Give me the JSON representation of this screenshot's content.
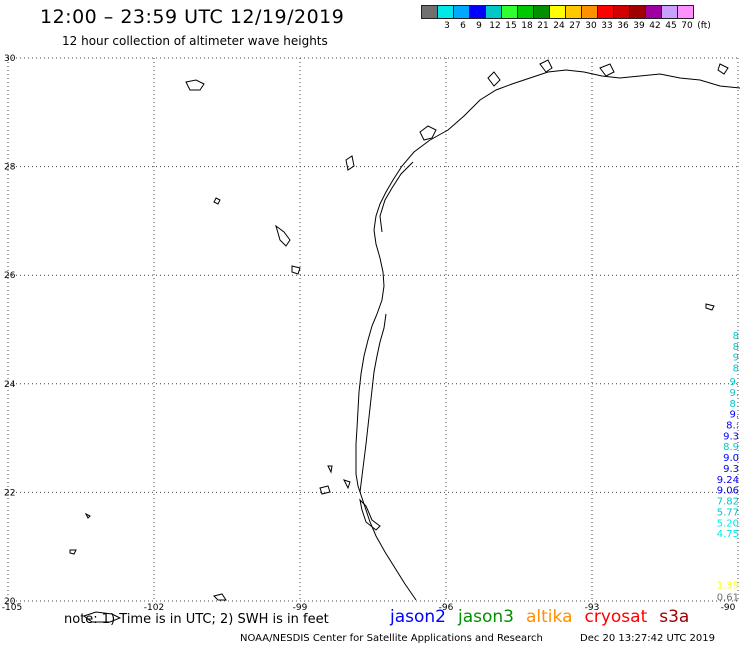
{
  "header": {
    "title": "12:00 – 23:59 UTC 12/19/2019",
    "subtitle": "12 hour collection of altimeter wave heights"
  },
  "legend": {
    "unit": "(ft)",
    "bins": [
      {
        "label": "",
        "color": "#707070"
      },
      {
        "label": "3",
        "color": "#00e8e8"
      },
      {
        "label": "6",
        "color": "#00a8ff"
      },
      {
        "label": "9",
        "color": "#0000ff"
      },
      {
        "label": "12",
        "color": "#00c8c8"
      },
      {
        "label": "15",
        "color": "#30ff30"
      },
      {
        "label": "18",
        "color": "#00c800"
      },
      {
        "label": "21",
        "color": "#009000"
      },
      {
        "label": "24",
        "color": "#ffff00"
      },
      {
        "label": "27",
        "color": "#ffc800"
      },
      {
        "label": "30",
        "color": "#ff9000"
      },
      {
        "label": "33",
        "color": "#ff0000"
      },
      {
        "label": "36",
        "color": "#d00000"
      },
      {
        "label": "39",
        "color": "#a00000"
      },
      {
        "label": "42",
        "color": "#a000a0"
      },
      {
        "label": "45",
        "color": "#c8a0ff"
      },
      {
        "label": "70",
        "color": "#ff90ff"
      }
    ]
  },
  "map": {
    "lon_ticks": [
      "-105",
      "-102",
      "-99",
      "-96",
      "-93",
      "-90"
    ],
    "lat_ticks": [
      "30",
      "28",
      "26",
      "24",
      "22",
      "20"
    ],
    "lon_range": [
      -105,
      -90
    ],
    "lat_range": [
      20,
      30
    ],
    "grid": "dotted",
    "coast_color": "#000000"
  },
  "swh_readings": [
    {
      "text": "8",
      "color": "#00c8c8",
      "lat": 24.9
    },
    {
      "text": "8",
      "color": "#00c8c8",
      "lat": 24.7
    },
    {
      "text": "9",
      "color": "#00c8c8",
      "lat": 24.5
    },
    {
      "text": "8",
      "color": "#00c8c8",
      "lat": 24.3
    },
    {
      "text": "9.",
      "color": "#00c8c8",
      "lat": 24.05
    },
    {
      "text": "9.",
      "color": "#00c8c8",
      "lat": 23.85
    },
    {
      "text": "8.",
      "color": "#00c8c8",
      "lat": 23.65
    },
    {
      "text": "9.",
      "color": "#0000ff",
      "lat": 23.45
    },
    {
      "text": "8.:",
      "color": "#0000ff",
      "lat": 23.25
    },
    {
      "text": "9.3",
      "color": "#0000ff",
      "lat": 23.05
    },
    {
      "text": "8.9",
      "color": "#00c8c8",
      "lat": 22.85
    },
    {
      "text": "9.0",
      "color": "#0000ff",
      "lat": 22.65
    },
    {
      "text": "9.3",
      "color": "#0000ff",
      "lat": 22.45
    },
    {
      "text": "9.24",
      "color": "#0000ff",
      "lat": 22.25
    },
    {
      "text": "9.06",
      "color": "#0000ff",
      "lat": 22.05
    },
    {
      "text": "7.82",
      "color": "#00c8c8",
      "lat": 21.85
    },
    {
      "text": "5.77",
      "color": "#00c8c8",
      "lat": 21.65
    },
    {
      "text": "5.20",
      "color": "#00e8e8",
      "lat": 21.45
    },
    {
      "text": "4.75",
      "color": "#00e8e8",
      "lat": 21.25
    },
    {
      "text": "1.39",
      "color": "#ffff00",
      "lat": 20.3
    },
    {
      "text": "0.61",
      "color": "#707070",
      "lat": 20.08
    }
  ],
  "footer": {
    "note": "note: 1) Time is in UTC; 2) SWH is in feet",
    "satellites": [
      {
        "name": "jason2",
        "color": "#0000ff"
      },
      {
        "name": "jason3",
        "color": "#009000"
      },
      {
        "name": "altika",
        "color": "#ff9000"
      },
      {
        "name": "cryosat",
        "color": "#ff0000"
      },
      {
        "name": "s3a",
        "color": "#a00000"
      }
    ],
    "credit": "NOAA/NESDIS Center for Satellite Applications and Research",
    "timestamp": "Dec 20 13:27:42 UTC 2019"
  }
}
